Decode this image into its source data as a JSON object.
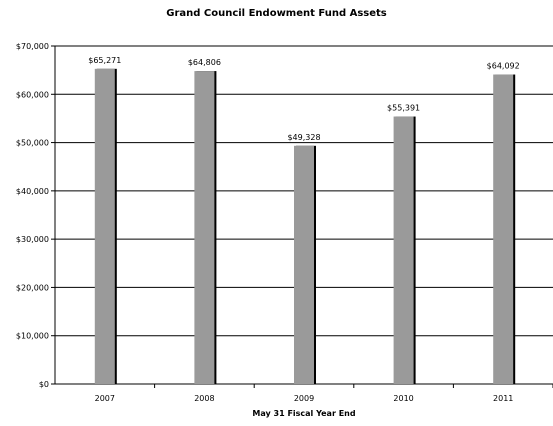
{
  "chart_data": {
    "type": "bar",
    "title": "Grand Council Endowment Fund Assets",
    "xlabel": "May 31 Fiscal Year End",
    "ylabel": "",
    "categories": [
      "2007",
      "2008",
      "2009",
      "2010",
      "2011"
    ],
    "values": [
      65271,
      64806,
      49328,
      55391,
      64092
    ],
    "data_labels": [
      "$65,271",
      "$64,806",
      "$49,328",
      "$55,391",
      "$64,092"
    ],
    "ylim": [
      0,
      70000
    ],
    "yticks": [
      0,
      10000,
      20000,
      30000,
      40000,
      50000,
      60000,
      70000
    ],
    "ytick_labels": [
      "$0",
      "$10,000",
      "$20,000",
      "$30,000",
      "$40,000",
      "$50,000",
      "$60,000",
      "$70,000"
    ],
    "grid": true,
    "legend": "none",
    "colors": {
      "bar": "#9a9a9a",
      "bar_shadow": "#000000",
      "grid": "#000000"
    }
  }
}
